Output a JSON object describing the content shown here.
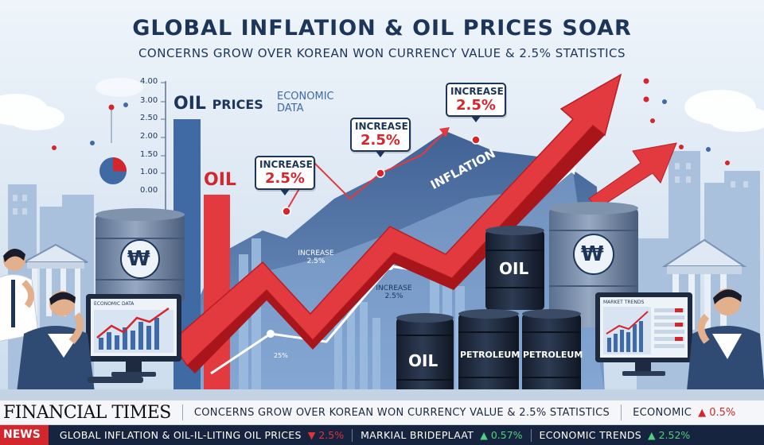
{
  "header": {
    "title": "GLOBAL INFLATION & OIL PRICES SOAR",
    "subtitle": "CONCERNS GROW OVER KOREAN WON CURRENCY VALUE & 2.5% STATISTICS"
  },
  "axis_ticks": [
    "4.00",
    "3.00",
    "2.50",
    "2.00",
    "1.50",
    "1.00",
    "0.00"
  ],
  "labels": {
    "oil_prices": "OIL",
    "oil_prices_small": "PRICES",
    "economic_data": "ECONOMIC DATA",
    "oil_bar": "OIL",
    "inflation": "INFLATION",
    "increase_small_1": "INCREASE 2.5%",
    "increase_small_2": "INCREASE 2.5%",
    "pct_small": "25%"
  },
  "callouts": [
    {
      "title": "INCREASE",
      "value": "2.5%"
    },
    {
      "title": "INCREASE",
      "value": "2.5%"
    },
    {
      "title": "INCREASE",
      "value": "2.5%"
    }
  ],
  "barrels": {
    "won_symbol": "₩",
    "oil": "OIL",
    "oil2": "OIL",
    "petroleum1": "PETROLEUM",
    "petroleum2": "PETROLEUM"
  },
  "monitors": {
    "left_title": "ECONOMIC DATA",
    "right_title": "MARKET TRENDS"
  },
  "ticker_top": {
    "brand": "FINANCIAL TIMES",
    "headline": "CONCERNS GROW OVER KOREAN WON CURRENCY VALUE & 2.5% STATISTICS",
    "item": "ECONOMIC",
    "item_change": "▲ 0.5%"
  },
  "ticker_bottom": {
    "news_label": "NEWS",
    "items": [
      {
        "text": "GLOBAL INFLATION & OIL-IL-LITING OIL PRICES",
        "change": "▼ 2.5%"
      },
      {
        "text": "MARKIAL BRIDEPLAAT",
        "change": "▲ 0.57%"
      },
      {
        "text": "ECONOMIC TRENDS",
        "change": "▲ 2.52%"
      }
    ]
  },
  "colors": {
    "navy": "#1c3559",
    "red": "#d3262d",
    "sky": "#dfe9f3",
    "blue_chart": "#3f6aa3"
  }
}
